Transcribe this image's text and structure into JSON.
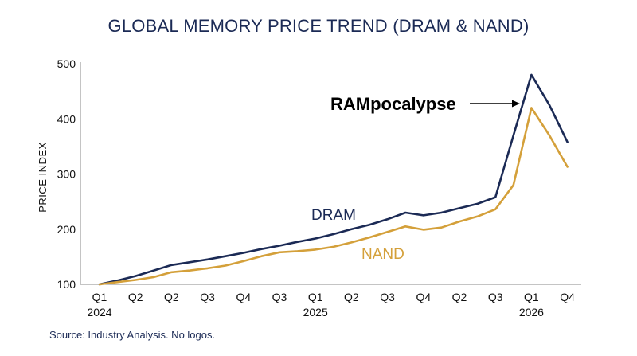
{
  "chart_data": {
    "type": "line",
    "title": "GLOBAL MEMORY PRICE TREND (DRAM & NAND)",
    "xlabel": "",
    "ylabel": "PRICE INDEX",
    "ylim": [
      100,
      500
    ],
    "yticks": [
      100,
      200,
      300,
      400,
      500
    ],
    "x_ticks": [
      "Q1",
      "Q2",
      "Q2",
      "Q3",
      "Q4",
      "Q3",
      "Q1",
      "Q2",
      "Q3",
      "Q4",
      "Q2",
      "Q3",
      "Q1",
      "Q4"
    ],
    "x_year_labels": [
      {
        "label": "2024",
        "tick": 0
      },
      {
        "label": "2025",
        "tick": 6
      },
      {
        "label": "2026",
        "tick": 12
      }
    ],
    "x": [
      0,
      0.5,
      1,
      1.5,
      2,
      2.5,
      3,
      3.5,
      4,
      4.5,
      5,
      5.5,
      6,
      6.5,
      7,
      7.5,
      8,
      8.5,
      9,
      9.5,
      10,
      10.5,
      11,
      11.5,
      12,
      12.5,
      13
    ],
    "series": [
      {
        "name": "DRAM",
        "color": "#1b2a55",
        "values": [
          100,
          107,
          115,
          125,
          135,
          140,
          145,
          151,
          157,
          164,
          170,
          177,
          183,
          191,
          200,
          208,
          218,
          230,
          225,
          230,
          238,
          246,
          258,
          370,
          480,
          425,
          358
        ]
      },
      {
        "name": "NAND",
        "color": "#d4a03a",
        "values": [
          100,
          104,
          108,
          113,
          122,
          125,
          129,
          134,
          142,
          151,
          158,
          160,
          163,
          168,
          176,
          185,
          195,
          205,
          199,
          203,
          214,
          223,
          236,
          280,
          420,
          370,
          313
        ]
      }
    ],
    "annotations": [
      {
        "text": "RAMpocalypse",
        "arrow_to": "DRAM peak"
      }
    ],
    "grid": false,
    "legend": "inline labels"
  },
  "footer": {
    "source": "Source: Industry Analysis. No logos."
  }
}
